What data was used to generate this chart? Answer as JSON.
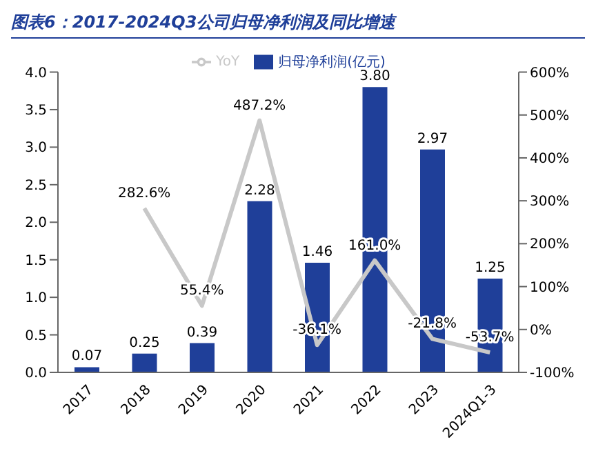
{
  "chart_data": {
    "type": "bar",
    "title": "图表6：2017-2024Q3公司归母净利润及同比增速",
    "categories": [
      "2017",
      "2018",
      "2019",
      "2020",
      "2021",
      "2022",
      "2023",
      "2024Q1-3"
    ],
    "series": [
      {
        "name": "归母净利润(亿元)",
        "color": "#1f3f99",
        "values": [
          0.07,
          0.25,
          0.39,
          2.28,
          1.46,
          3.8,
          2.97,
          1.25
        ],
        "value_labels": [
          "0.07",
          "0.25",
          "0.39",
          "2.28",
          "1.46",
          "3.80",
          "2.97",
          "1.25"
        ]
      },
      {
        "name": "YoY",
        "type": "line",
        "axis": "y2",
        "color": "#c8c8c8",
        "values": [
          null,
          282.6,
          55.4,
          487.2,
          -36.1,
          161.0,
          -21.8,
          -53.7
        ],
        "value_labels": [
          null,
          "282.6%",
          "55.4%",
          "487.2%",
          "-36.1%",
          "161.0%",
          "-21.8%",
          "-53.7%"
        ]
      }
    ],
    "ylim": [
      0,
      4
    ],
    "yticks": [
      {
        "value": 0,
        "label": "0.0"
      },
      {
        "value": 0.5,
        "label": "0.5"
      },
      {
        "value": 1,
        "label": "1.0"
      },
      {
        "value": 1.5,
        "label": "1.5"
      },
      {
        "value": 2,
        "label": "2.0"
      },
      {
        "value": 2.5,
        "label": "2.5"
      },
      {
        "value": 3,
        "label": "3.0"
      },
      {
        "value": 3.5,
        "label": "3.5"
      },
      {
        "value": 4,
        "label": "4.0"
      }
    ],
    "y2lim": [
      -100,
      600
    ],
    "y2ticks": [
      {
        "value": -100,
        "label": "-100%"
      },
      {
        "value": 0,
        "label": "0%"
      },
      {
        "value": 100,
        "label": "100%"
      },
      {
        "value": 200,
        "label": "200%"
      },
      {
        "value": 300,
        "label": "300%"
      },
      {
        "value": 400,
        "label": "400%"
      },
      {
        "value": 500,
        "label": "500%"
      },
      {
        "value": 600,
        "label": "600%"
      }
    ],
    "legend": "top",
    "grid": false,
    "marker": "none"
  }
}
